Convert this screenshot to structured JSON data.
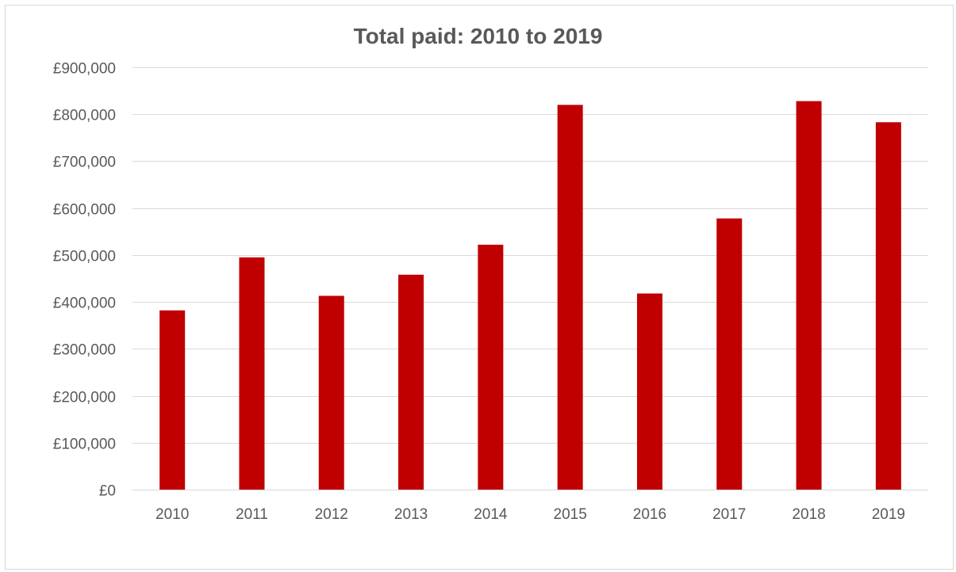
{
  "chart_data": {
    "type": "bar",
    "title": "Total paid: 2010 to 2019",
    "xlabel": "",
    "ylabel": "",
    "categories": [
      "2010",
      "2011",
      "2012",
      "2013",
      "2014",
      "2015",
      "2016",
      "2017",
      "2018",
      "2019"
    ],
    "values": [
      382000,
      495000,
      413000,
      458000,
      522000,
      820000,
      418000,
      578000,
      828000,
      783000
    ],
    "ylim": [
      0,
      900000
    ],
    "yticks": [
      0,
      100000,
      200000,
      300000,
      400000,
      500000,
      600000,
      700000,
      800000,
      900000
    ],
    "ytick_labels": [
      "£0",
      "£100,000",
      "£200,000",
      "£300,000",
      "£400,000",
      "£500,000",
      "£600,000",
      "£700,000",
      "£800,000",
      "£900,000"
    ],
    "grid": true,
    "legend": "none",
    "bar_color": "#c00000",
    "grid_color": "#d9d9d9",
    "text_color": "#595959"
  }
}
